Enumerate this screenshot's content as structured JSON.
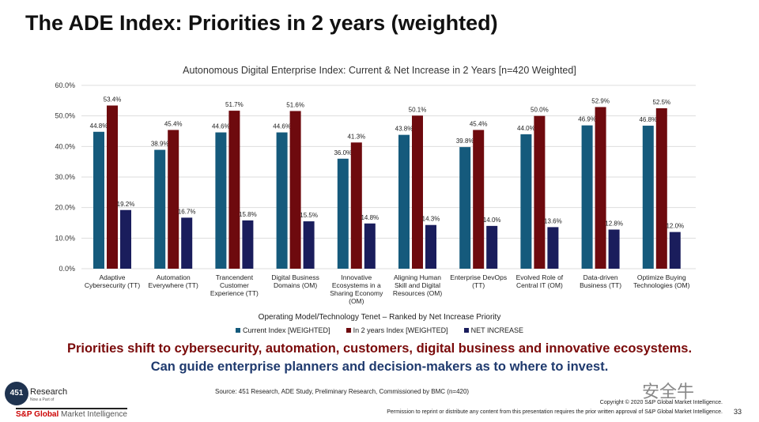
{
  "slide": {
    "title": "The ADE Index: Priorities in 2 years (weighted)",
    "message_line1": "Priorities shift to cybersecurity, automation, customers, digital business and innovative ecosystems.",
    "message_line2": "Can guide enterprise planners and decision-makers as to where to invest.",
    "source": "Source: 451 Research, ADE Study, Preliminary Research, Commissioned by BMC (n=420)",
    "copyright": "Copyright © 2020 S&P Global Market Intelligence.",
    "permission": "Permission to reprint or distribute any content from this presentation requires the prior written approval of S&P Global Market Intelligence.",
    "page_number": "33",
    "logo_451": "451",
    "logo_research": "Research",
    "logo_partof": "Now a Part of",
    "logo_spg_bold": "S&P Global",
    "logo_spg_rest": " Market Intelligence",
    "watermark": "安全牛"
  },
  "chart_data": {
    "type": "bar",
    "title": "Autonomous Digital Enterprise Index: Current & Net Increase in 2 Years [n=420 Weighted]",
    "xlabel": "Operating Model/Technology Tenet – Ranked by Net Increase Priority",
    "ylabel": "",
    "ylim": [
      0,
      60
    ],
    "yticks": [
      "0.0%",
      "10.0%",
      "20.0%",
      "30.0%",
      "40.0%",
      "50.0%",
      "60.0%"
    ],
    "grid": true,
    "legend_position": "bottom",
    "categories": [
      [
        "Adaptive",
        "Cybersecurity (TT)"
      ],
      [
        "Automation",
        "Everywhere (TT)"
      ],
      [
        "Trancendent",
        "Customer",
        "Experience (TT)"
      ],
      [
        "Digital Business",
        "Domains (OM)"
      ],
      [
        "Innovative",
        "Ecosystems in a",
        "Sharing Economy",
        "(OM)"
      ],
      [
        "Aligning Human",
        "Skill and Digital",
        "Resources (OM)"
      ],
      [
        "Enterprise DevOps",
        "(TT)"
      ],
      [
        "Evolved Role of",
        "Central IT (OM)"
      ],
      [
        "Data-driven",
        "Business (TT)"
      ],
      [
        "Optimize Buying",
        "Technologies (OM)"
      ]
    ],
    "series": [
      {
        "name": "Current Index [WEIGHTED]",
        "color": "#155a7c",
        "values": [
          44.8,
          38.9,
          44.6,
          44.6,
          36.0,
          43.8,
          39.8,
          44.0,
          46.9,
          46.8
        ]
      },
      {
        "name": "In 2 years Index [WEIGHTED]",
        "color": "#6e0a0e",
        "values": [
          53.4,
          45.4,
          51.7,
          51.6,
          41.3,
          50.1,
          45.4,
          50.0,
          52.9,
          52.5
        ]
      },
      {
        "name": "NET INCREASE",
        "color": "#1a1d5c",
        "values": [
          19.2,
          16.7,
          15.8,
          15.5,
          14.8,
          14.3,
          14.0,
          13.6,
          12.8,
          12.0
        ]
      }
    ]
  }
}
